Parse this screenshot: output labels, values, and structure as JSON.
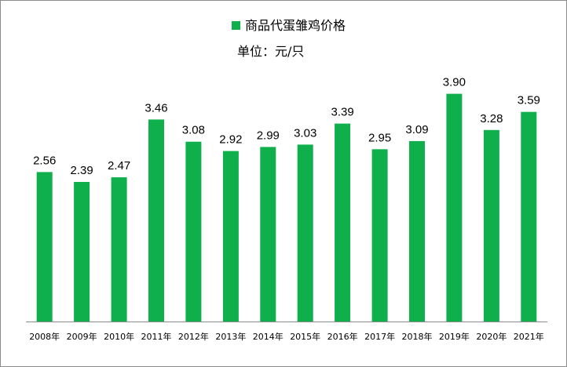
{
  "chart_data": {
    "type": "bar",
    "legend": {
      "series_name": "商品代蛋雏鸡价格",
      "placement": "top-center"
    },
    "unit_label": "单位：元/只",
    "categories": [
      "2008年",
      "2009年",
      "2010年",
      "2011年",
      "2012年",
      "2013年",
      "2014年",
      "2015年",
      "2016年",
      "2017年",
      "2018年",
      "2019年",
      "2020年",
      "2021年"
    ],
    "series": [
      {
        "name": "商品代蛋雏鸡价格",
        "values": [
          2.56,
          2.39,
          2.47,
          3.46,
          3.08,
          2.92,
          2.99,
          3.03,
          3.39,
          2.95,
          3.09,
          3.9,
          3.28,
          3.59
        ],
        "color": "#0fb04c"
      }
    ],
    "data_labels": [
      "2.56",
      "2.39",
      "2.47",
      "3.46",
      "3.08",
      "2.92",
      "2.99",
      "3.03",
      "3.39",
      "2.95",
      "3.09",
      "3.90",
      "3.28",
      "3.59"
    ],
    "ylim": [
      0,
      4.19
    ],
    "grid": false,
    "axis_color": "#8c8c8c"
  }
}
